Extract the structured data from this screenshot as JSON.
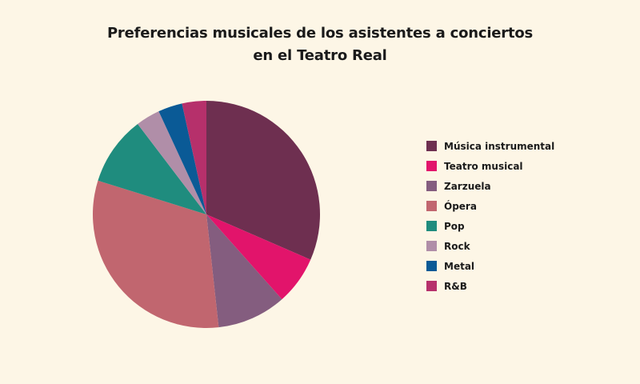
{
  "chart_data": {
    "type": "pie",
    "title_lines": [
      "Preferencias musicales de los asistentes a conciertos",
      "en el Teatro Real"
    ],
    "categories": [
      "Música instrumental",
      "Teatro musical",
      "Zarzuela",
      "Ópera",
      "Pop",
      "Rock",
      "Metal",
      "R&B"
    ],
    "values": [
      32,
      7,
      10,
      32,
      10,
      3.5,
      3.5,
      3.5
    ],
    "colors": [
      "#6e2f50",
      "#e2146b",
      "#845d7f",
      "#c1666f",
      "#1f8c7e",
      "#b08ea8",
      "#0a5a96",
      "#b6306b"
    ],
    "start_angle": "12 o'clock, clockwise",
    "legend_position": "right"
  }
}
